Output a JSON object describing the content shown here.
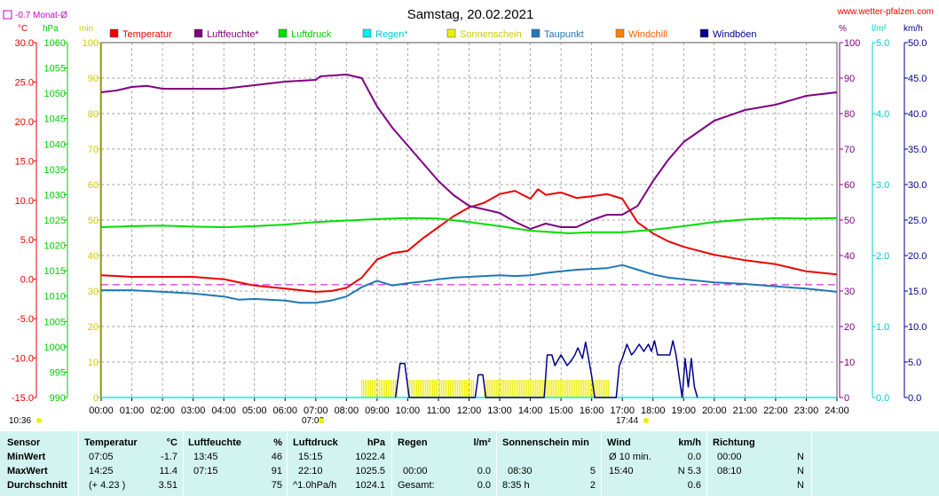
{
  "page": {
    "title": "Samstag, 20.02.2021",
    "website": "www.wetter-pfalzen.com",
    "month_avg_label": "-0.7 Monat-Ø",
    "unit_labels": {
      "temp": "°C",
      "pressure": "hPa",
      "sun": "min",
      "humidity": "%",
      "rain": "l/m²",
      "wind": "km/h"
    },
    "sunrise": "07:08",
    "sunset": "17:44",
    "clock": "10:36"
  },
  "legend": [
    {
      "label": "Temperatur",
      "color": "#ee0000",
      "text_color": "#ee0000"
    },
    {
      "label": "Luftfeuchte*",
      "color": "#800080",
      "text_color": "#800080"
    },
    {
      "label": "Luftdruck",
      "color": "#00dd00",
      "text_color": "#00cc00"
    },
    {
      "label": "Regen*",
      "color": "#00eeee",
      "text_color": "#00cccc"
    },
    {
      "label": "Sonnenschein",
      "color": "#eeee00",
      "text_color": "#cccc00"
    },
    {
      "label": "Taupunkt",
      "color": "#1f78b4",
      "text_color": "#1f78b4"
    },
    {
      "label": "Windchill",
      "color": "#ff8000",
      "text_color": "#ff6000"
    },
    {
      "label": "Windböen",
      "color": "#00008b",
      "text_color": "#00008b"
    }
  ],
  "colors": {
    "temp_axis": "#ee0000",
    "pressure_axis": "#00cc00",
    "sun_axis": "#cccc00",
    "humidity_axis": "#800080",
    "rain_axis": "#00cccc",
    "wind_axis": "#00008b",
    "month_avg_line": "#cc00cc",
    "grid": "#888888"
  },
  "chart_data": {
    "type": "line",
    "title": "Samstag, 20.02.2021",
    "x_ticks": [
      "00:00",
      "01:00",
      "02:00",
      "03:00",
      "04:00",
      "05:00",
      "06:00",
      "07:00",
      "08:00",
      "09:00",
      "10:00",
      "11:00",
      "12:00",
      "13:00",
      "14:00",
      "15:00",
      "16:00",
      "17:00",
      "18:00",
      "19:00",
      "20:00",
      "21:00",
      "22:00",
      "23:00",
      "24:00"
    ],
    "x_range_hours": [
      0,
      24
    ],
    "axes": {
      "temp": {
        "range": [
          -15,
          30
        ],
        "ticks": [
          "30.0",
          "25.0",
          "20.0",
          "15.0",
          "10.0",
          "5.0",
          "0.0",
          "-5.0",
          "-10.0",
          "-15.0"
        ],
        "values": [
          30,
          25,
          20,
          15,
          10,
          5,
          0,
          -5,
          -10,
          -15
        ]
      },
      "pressure": {
        "range": [
          990,
          1060
        ],
        "ticks": [
          "1060",
          "1055",
          "1050",
          "1045",
          "1040",
          "1035",
          "1030",
          "1025",
          "1020",
          "1015",
          "1010",
          "1005",
          "1000",
          "995",
          "990"
        ],
        "values": [
          1060,
          1055,
          1050,
          1045,
          1040,
          1035,
          1030,
          1025,
          1020,
          1015,
          1010,
          1005,
          1000,
          995,
          990
        ]
      },
      "sun": {
        "range": [
          0,
          100
        ],
        "ticks": [
          "100",
          "90",
          "80",
          "70",
          "60",
          "50",
          "40",
          "30",
          "20",
          "10",
          "0"
        ],
        "values": [
          100,
          90,
          80,
          70,
          60,
          50,
          40,
          30,
          20,
          10,
          0
        ]
      },
      "humidity": {
        "range": [
          0,
          100
        ],
        "ticks": [
          "100",
          "90",
          "80",
          "70",
          "60",
          "50",
          "40",
          "30",
          "20",
          "10",
          "0"
        ],
        "values": [
          100,
          90,
          80,
          70,
          60,
          50,
          40,
          30,
          20,
          10,
          0
        ]
      },
      "rain": {
        "range": [
          0,
          5
        ],
        "ticks": [
          "5.0",
          "4.0",
          "3.0",
          "2.0",
          "1.0",
          "0.0"
        ],
        "values": [
          5,
          4,
          3,
          2,
          1,
          0
        ]
      },
      "wind": {
        "range": [
          0,
          50
        ],
        "ticks": [
          "50.0",
          "45.0",
          "40.0",
          "35.0",
          "30.0",
          "25.0",
          "20.0",
          "15.0",
          "10.0",
          "5.0",
          "0.0"
        ],
        "values": [
          50,
          45,
          40,
          35,
          30,
          25,
          20,
          15,
          10,
          5,
          0
        ]
      }
    },
    "month_avg_temp": -0.7,
    "series": [
      {
        "name": "Temperatur",
        "axis": "temp",
        "color": "#ee0000",
        "points": [
          [
            0,
            0.5
          ],
          [
            1,
            0.3
          ],
          [
            2,
            0.3
          ],
          [
            3,
            0.3
          ],
          [
            4,
            0
          ],
          [
            5,
            -0.8
          ],
          [
            6,
            -1.2
          ],
          [
            7,
            -1.6
          ],
          [
            7.5,
            -1.5
          ],
          [
            8,
            -1.1
          ],
          [
            8.5,
            0.2
          ],
          [
            9,
            2.5
          ],
          [
            9.5,
            3.3
          ],
          [
            10,
            3.6
          ],
          [
            10.5,
            5.2
          ],
          [
            11,
            6.6
          ],
          [
            11.5,
            8.0
          ],
          [
            12,
            9.1
          ],
          [
            12.5,
            9.7
          ],
          [
            13,
            10.8
          ],
          [
            13.5,
            11.2
          ],
          [
            14,
            10.2
          ],
          [
            14.25,
            11.4
          ],
          [
            14.5,
            10.7
          ],
          [
            15,
            11.0
          ],
          [
            15.5,
            10.3
          ],
          [
            16,
            10.5
          ],
          [
            16.5,
            10.8
          ],
          [
            17,
            10.2
          ],
          [
            17.5,
            7.2
          ],
          [
            18,
            5.8
          ],
          [
            18.5,
            4.8
          ],
          [
            19,
            4.1
          ],
          [
            19.5,
            3.6
          ],
          [
            20,
            3.1
          ],
          [
            21,
            2.4
          ],
          [
            22,
            1.9
          ],
          [
            23,
            1.0
          ],
          [
            24,
            0.6
          ]
        ]
      },
      {
        "name": "Luftfeuchte*",
        "axis": "humidity",
        "color": "#800080",
        "points": [
          [
            0,
            86
          ],
          [
            0.5,
            86.5
          ],
          [
            1,
            87.5
          ],
          [
            1.5,
            87.8
          ],
          [
            2,
            87
          ],
          [
            3,
            87
          ],
          [
            4,
            87
          ],
          [
            5,
            88
          ],
          [
            6,
            89
          ],
          [
            7,
            89.5
          ],
          [
            7.15,
            90.5
          ],
          [
            8,
            91
          ],
          [
            8.5,
            90
          ],
          [
            9,
            82
          ],
          [
            9.5,
            76
          ],
          [
            10,
            71
          ],
          [
            10.5,
            66
          ],
          [
            11,
            61
          ],
          [
            11.5,
            57
          ],
          [
            12,
            54
          ],
          [
            12.5,
            53
          ],
          [
            13,
            52
          ],
          [
            13.5,
            49.5
          ],
          [
            14,
            47.5
          ],
          [
            14.5,
            49
          ],
          [
            15,
            48
          ],
          [
            15.5,
            48
          ],
          [
            16,
            50
          ],
          [
            16.5,
            51.5
          ],
          [
            17,
            51.5
          ],
          [
            17.5,
            54
          ],
          [
            18,
            61
          ],
          [
            18.5,
            67
          ],
          [
            19,
            72
          ],
          [
            19.5,
            75
          ],
          [
            20,
            78
          ],
          [
            21,
            81
          ],
          [
            22,
            82.5
          ],
          [
            23,
            85
          ],
          [
            24,
            86
          ]
        ]
      },
      {
        "name": "Luftdruck",
        "axis": "pressure",
        "color": "#00dd00",
        "points": [
          [
            0,
            1023.6
          ],
          [
            1,
            1023.8
          ],
          [
            2,
            1023.9
          ],
          [
            3,
            1023.7
          ],
          [
            4,
            1023.6
          ],
          [
            5,
            1023.8
          ],
          [
            6,
            1024.1
          ],
          [
            7,
            1024.6
          ],
          [
            8,
            1024.9
          ],
          [
            9,
            1025.2
          ],
          [
            10,
            1025.4
          ],
          [
            11,
            1025.3
          ],
          [
            12,
            1024.6
          ],
          [
            13,
            1023.8
          ],
          [
            14,
            1022.9
          ],
          [
            15,
            1022.5
          ],
          [
            15.25,
            1022.4
          ],
          [
            16,
            1022.6
          ],
          [
            17,
            1022.6
          ],
          [
            18,
            1023.1
          ],
          [
            19,
            1023.8
          ],
          [
            20,
            1024.6
          ],
          [
            21,
            1025.1
          ],
          [
            22,
            1025.4
          ],
          [
            23,
            1025.3
          ],
          [
            24,
            1025.4
          ]
        ]
      },
      {
        "name": "Taupunkt",
        "axis": "temp",
        "color": "#1f78b4",
        "points": [
          [
            0,
            -1.4
          ],
          [
            1,
            -1.4
          ],
          [
            2,
            -1.6
          ],
          [
            3,
            -1.8
          ],
          [
            4,
            -2.2
          ],
          [
            4.5,
            -2.6
          ],
          [
            5,
            -2.5
          ],
          [
            6,
            -2.7
          ],
          [
            6.5,
            -3.0
          ],
          [
            7,
            -3.0
          ],
          [
            7.5,
            -2.7
          ],
          [
            8,
            -2.2
          ],
          [
            8.5,
            -1.0
          ],
          [
            9,
            -0.2
          ],
          [
            9.5,
            -0.8
          ],
          [
            10,
            -0.5
          ],
          [
            10.5,
            -0.3
          ],
          [
            11,
            0
          ],
          [
            11.5,
            0.2
          ],
          [
            12,
            0.3
          ],
          [
            12.5,
            0.4
          ],
          [
            13,
            0.5
          ],
          [
            13.5,
            0.4
          ],
          [
            14,
            0.5
          ],
          [
            14.5,
            0.8
          ],
          [
            15,
            1.0
          ],
          [
            15.5,
            1.2
          ],
          [
            16,
            1.3
          ],
          [
            16.5,
            1.4
          ],
          [
            17,
            1.8
          ],
          [
            17.5,
            1.2
          ],
          [
            18,
            0.6
          ],
          [
            18.5,
            0.2
          ],
          [
            19,
            0
          ],
          [
            20,
            -0.4
          ],
          [
            21,
            -0.6
          ],
          [
            22,
            -0.9
          ],
          [
            23,
            -1.2
          ],
          [
            24,
            -1.6
          ]
        ]
      },
      {
        "name": "Regen*",
        "axis": "rain",
        "color": "#00eeee",
        "points": [
          [
            0,
            0
          ],
          [
            24,
            0
          ]
        ]
      },
      {
        "name": "Windböen",
        "axis": "wind",
        "color": "#00008b",
        "points": [
          [
            9.6,
            0
          ],
          [
            9.75,
            4.8
          ],
          [
            9.9,
            4.8
          ],
          [
            10.05,
            0
          ],
          [
            12.2,
            0
          ],
          [
            12.3,
            3.2
          ],
          [
            12.45,
            3.2
          ],
          [
            12.55,
            0
          ],
          [
            14.45,
            0
          ],
          [
            14.55,
            6.0
          ],
          [
            14.7,
            6.0
          ],
          [
            14.8,
            4.5
          ],
          [
            15.0,
            6.0
          ],
          [
            15.2,
            4.5
          ],
          [
            15.35,
            5.3
          ],
          [
            15.45,
            6.0
          ],
          [
            15.55,
            7.0
          ],
          [
            15.7,
            5.5
          ],
          [
            15.8,
            7.8
          ],
          [
            15.9,
            5.5
          ],
          [
            16.0,
            3.0
          ],
          [
            16.1,
            0
          ],
          [
            16.8,
            0
          ],
          [
            16.9,
            4.5
          ],
          [
            17.0,
            5.5
          ],
          [
            17.15,
            7.5
          ],
          [
            17.3,
            6.0
          ],
          [
            17.4,
            6.5
          ],
          [
            17.55,
            7.5
          ],
          [
            17.7,
            6.5
          ],
          [
            17.85,
            7.5
          ],
          [
            17.95,
            6.5
          ],
          [
            18.05,
            8.0
          ],
          [
            18.15,
            6.0
          ],
          [
            18.35,
            6.0
          ],
          [
            18.55,
            6.0
          ],
          [
            18.65,
            8.0
          ],
          [
            18.75,
            6.0
          ],
          [
            18.85,
            3.0
          ],
          [
            18.95,
            0
          ],
          [
            19.05,
            5.5
          ],
          [
            19.15,
            1.5
          ],
          [
            19.25,
            5.5
          ],
          [
            19.35,
            1.5
          ],
          [
            19.45,
            0
          ]
        ]
      }
    ],
    "sunshine_intervals": [
      [
        8.5,
        9.7
      ],
      [
        10.0,
        12.2
      ],
      [
        12.5,
        16.6
      ]
    ],
    "sunshine_level_min": 5
  },
  "stats": {
    "headers": {
      "sensor": "Sensor",
      "temp": "Temperatur",
      "temp_unit": "°C",
      "hum": "Luftfeuchte",
      "hum_unit": "%",
      "press": "Luftdruck",
      "press_unit": "hPa",
      "rain": "Regen",
      "rain_unit": "l/m²",
      "sun": "Sonnenschein min",
      "wind": "Wind",
      "wind_unit": "km/h",
      "dir": "Richtung"
    },
    "rows": [
      {
        "label": "MinWert",
        "temp_time": "07:05",
        "temp_val": "-1.7",
        "hum_time": "13:45",
        "hum_val": "46",
        "press_time": "15:15",
        "press_val": "1022.4",
        "rain_time": "",
        "rain_val": "",
        "sun_time": "",
        "sun_val": "",
        "wind_time": "Ø 10 min.",
        "wind_val": "0.0",
        "dir_time": "00:00",
        "dir_val": "N"
      },
      {
        "label": "MaxWert",
        "temp_time": "14:25",
        "temp_val": "11.4",
        "hum_time": "07:15",
        "hum_val": "91",
        "press_time": "22:10",
        "press_val": "1025.5",
        "rain_time": "00:00",
        "rain_val": "0.0",
        "sun_time": "08:30",
        "sun_val": "5",
        "wind_time": "15:40",
        "wind_val": "N 5.3",
        "dir_time": "08:10",
        "dir_val": "N"
      },
      {
        "label": "Durchschnitt",
        "temp_time": "(+ 4.23 )",
        "temp_val": "3.51",
        "hum_time": "",
        "hum_val": "75",
        "press_time": "^1.0hPa/h",
        "press_val": "1024.1",
        "rain_time": "Gesamt:",
        "rain_val": "0.0",
        "sun_time": "8:35 h",
        "sun_val": "2",
        "wind_time": "",
        "wind_val": "0.6",
        "dir_time": "",
        "dir_val": "N"
      }
    ]
  }
}
